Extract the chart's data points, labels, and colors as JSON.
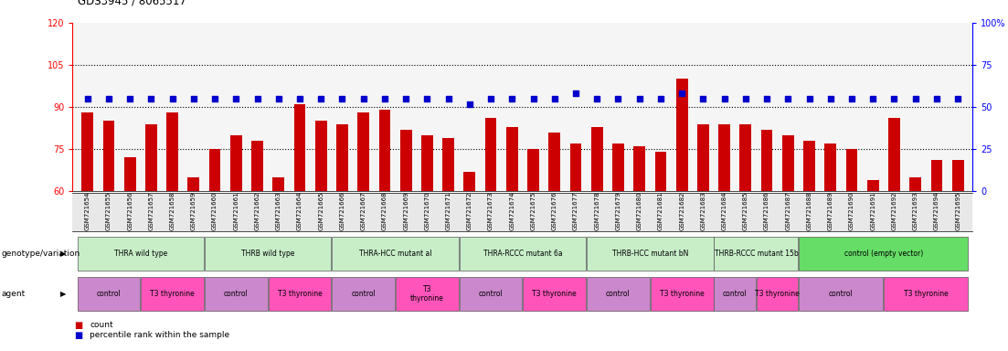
{
  "title": "GDS3945 / 8065517",
  "samples": [
    "GSM721654",
    "GSM721655",
    "GSM721656",
    "GSM721657",
    "GSM721658",
    "GSM721659",
    "GSM721660",
    "GSM721661",
    "GSM721662",
    "GSM721663",
    "GSM721664",
    "GSM721665",
    "GSM721666",
    "GSM721667",
    "GSM721668",
    "GSM721669",
    "GSM721670",
    "GSM721671",
    "GSM721672",
    "GSM721673",
    "GSM721674",
    "GSM721675",
    "GSM721676",
    "GSM721677",
    "GSM721678",
    "GSM721679",
    "GSM721680",
    "GSM721681",
    "GSM721682",
    "GSM721683",
    "GSM721684",
    "GSM721685",
    "GSM721686",
    "GSM721687",
    "GSM721688",
    "GSM721689",
    "GSM721690",
    "GSM721691",
    "GSM721692",
    "GSM721693",
    "GSM721694",
    "GSM721695"
  ],
  "counts": [
    88,
    85,
    72,
    84,
    88,
    65,
    75,
    80,
    78,
    65,
    91,
    85,
    84,
    88,
    89,
    82,
    80,
    79,
    67,
    86,
    83,
    75,
    81,
    77,
    83,
    77,
    76,
    74,
    100,
    84,
    84,
    84,
    82,
    80,
    78,
    77,
    75,
    64,
    86,
    65,
    71,
    71
  ],
  "percentile_ranks_left_axis": [
    93,
    93,
    93,
    93,
    93,
    93,
    93,
    93,
    93,
    93,
    93,
    93,
    93,
    93,
    93,
    93,
    93,
    93,
    91,
    93,
    93,
    93,
    93,
    95,
    93,
    93,
    93,
    93,
    95,
    93,
    93,
    93,
    93,
    93,
    93,
    93,
    93,
    93,
    93,
    93,
    93,
    93
  ],
  "ylim_left": [
    60,
    120
  ],
  "ylim_right": [
    0,
    100
  ],
  "hlines": [
    75,
    90,
    105
  ],
  "bar_color": "#CC0000",
  "dot_color": "#0000CC",
  "bg_color": "#FFFFFF",
  "plot_bg": "#F5F5F5",
  "xtick_bg": "#E8E8E8",
  "genotype_groups": [
    {
      "label": "THRA wild type",
      "start": 0,
      "end": 6,
      "color": "#C8EEC8"
    },
    {
      "label": "THRB wild type",
      "start": 6,
      "end": 12,
      "color": "#C8EEC8"
    },
    {
      "label": "THRA-HCC mutant al",
      "start": 12,
      "end": 18,
      "color": "#C8EEC8"
    },
    {
      "label": "THRA-RCCC mutant 6a",
      "start": 18,
      "end": 24,
      "color": "#C8EEC8"
    },
    {
      "label": "THRB-HCC mutant bN",
      "start": 24,
      "end": 30,
      "color": "#C8EEC8"
    },
    {
      "label": "THRB-RCCC mutant 15b",
      "start": 30,
      "end": 34,
      "color": "#C8EEC8"
    },
    {
      "label": "control (empty vector)",
      "start": 34,
      "end": 42,
      "color": "#66DD66"
    }
  ],
  "agent_groups": [
    {
      "label": "control",
      "start": 0,
      "end": 3,
      "color": "#CC88CC"
    },
    {
      "label": "T3 thyronine",
      "start": 3,
      "end": 6,
      "color": "#FF55BB"
    },
    {
      "label": "control",
      "start": 6,
      "end": 9,
      "color": "#CC88CC"
    },
    {
      "label": "T3 thyronine",
      "start": 9,
      "end": 12,
      "color": "#FF55BB"
    },
    {
      "label": "control",
      "start": 12,
      "end": 15,
      "color": "#CC88CC"
    },
    {
      "label": "T3\nthyronine",
      "start": 15,
      "end": 18,
      "color": "#FF55BB"
    },
    {
      "label": "control",
      "start": 18,
      "end": 21,
      "color": "#CC88CC"
    },
    {
      "label": "T3 thyronine",
      "start": 21,
      "end": 24,
      "color": "#FF55BB"
    },
    {
      "label": "control",
      "start": 24,
      "end": 27,
      "color": "#CC88CC"
    },
    {
      "label": "T3 thyronine",
      "start": 27,
      "end": 30,
      "color": "#FF55BB"
    },
    {
      "label": "control",
      "start": 30,
      "end": 32,
      "color": "#CC88CC"
    },
    {
      "label": "T3 thyronine",
      "start": 32,
      "end": 34,
      "color": "#FF55BB"
    },
    {
      "label": "control",
      "start": 34,
      "end": 38,
      "color": "#CC88CC"
    },
    {
      "label": "T3 thyronine",
      "start": 38,
      "end": 42,
      "color": "#FF55BB"
    }
  ],
  "row_label_geno": "genotype/variation",
  "row_label_agent": "agent",
  "legend_count": "count",
  "legend_pct": "percentile rank within the sample"
}
